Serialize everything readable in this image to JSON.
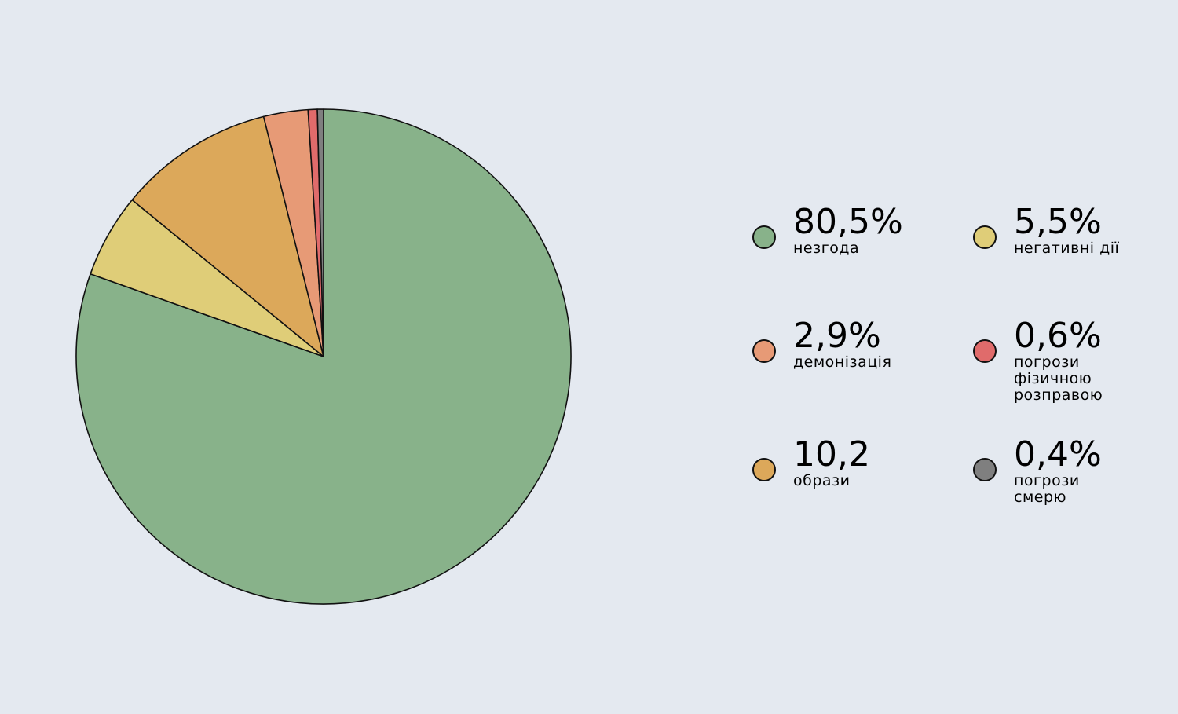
{
  "chart_data": {
    "type": "pie",
    "categories": [
      "незгода",
      "негативні дії",
      "образи",
      "демонізація",
      "погрози фізичною розправою",
      "погрози смерю"
    ],
    "values": [
      80.5,
      5.5,
      10.2,
      2.9,
      0.6,
      0.4
    ],
    "value_labels": [
      "80,5%",
      "5,5%",
      "10,2",
      "2,9%",
      "0,6%",
      "0,4%"
    ],
    "colors": [
      "#88b28a",
      "#dfcd78",
      "#dca85a",
      "#e79a76",
      "#e06b6b",
      "#7f7f7f"
    ]
  }
}
